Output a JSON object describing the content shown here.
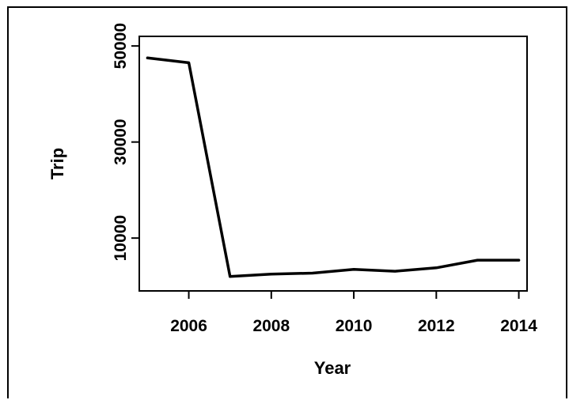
{
  "chart_data": {
    "type": "line",
    "title": "",
    "xlabel": "Year",
    "ylabel": "Trip",
    "xlim": [
      2004.8,
      2014.2
    ],
    "ylim": [
      -1000,
      52000
    ],
    "x_ticks": [
      2006,
      2008,
      2010,
      2012,
      2014
    ],
    "y_ticks": [
      10000,
      30000,
      50000
    ],
    "grid": false,
    "legend": "none",
    "line_color": "#000000",
    "series": [
      {
        "x": [
          2005,
          2006,
          2007,
          2008,
          2009,
          2010,
          2011,
          2012,
          2013,
          2014
        ],
        "y": [
          47500,
          46500,
          2000,
          2500,
          2700,
          3500,
          3100,
          3800,
          5400,
          5400
        ]
      }
    ]
  }
}
